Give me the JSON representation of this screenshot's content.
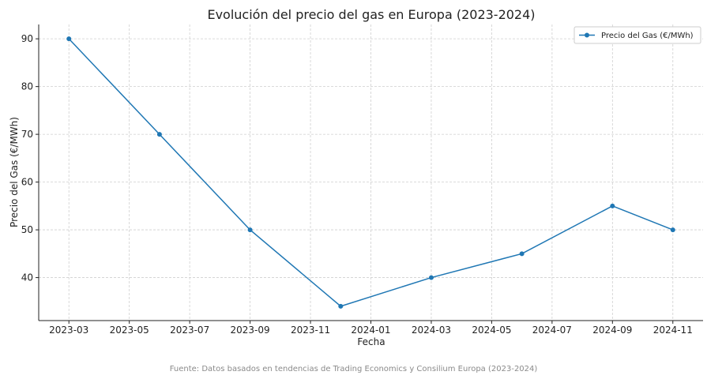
{
  "chart_data": {
    "type": "line",
    "title": "Evolución del precio del gas en Europa (2023-2024)",
    "xlabel": "Fecha",
    "ylabel": "Precio del Gas (€/MWh)",
    "x_ticks": [
      "2023-03",
      "2023-05",
      "2023-07",
      "2023-09",
      "2023-11",
      "2024-01",
      "2024-03",
      "2024-05",
      "2024-07",
      "2024-09",
      "2024-11"
    ],
    "y_ticks": [
      40,
      50,
      60,
      70,
      80,
      90
    ],
    "ylim": [
      31,
      93
    ],
    "xlim": [
      "2023-02",
      "2024-12"
    ],
    "grid": true,
    "legend_position": "top-right",
    "color": "#1f77b4",
    "series": [
      {
        "name": "Precio del Gas (€/MWh)",
        "x": [
          "2023-03",
          "2023-06",
          "2023-09",
          "2023-12",
          "2024-03",
          "2024-06",
          "2024-09",
          "2024-11"
        ],
        "values": [
          90,
          70,
          50,
          34,
          40,
          45,
          55,
          50
        ]
      }
    ]
  },
  "footer": {
    "source": "Fuente: Datos basados en tendencias de Trading Economics y Consilium Europa (2023-2024)"
  }
}
